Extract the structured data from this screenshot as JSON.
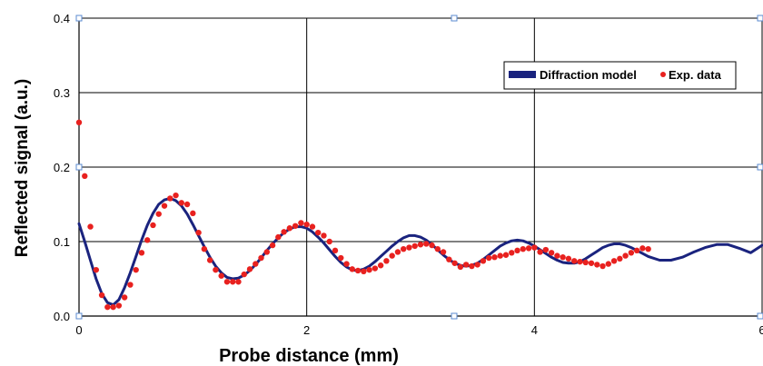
{
  "chart_data": {
    "type": "line",
    "xlabel": "Probe distance (mm)",
    "ylabel": "Reflected signal (a.u.)",
    "xlim": [
      0,
      6
    ],
    "ylim": [
      0,
      0.4
    ],
    "x_ticks": [
      "0",
      "2",
      "4",
      "6"
    ],
    "y_ticks": [
      "0.0",
      "0.1",
      "0.2",
      "0.3",
      "0.4"
    ],
    "grid": true,
    "legend_position": "top-right",
    "series": [
      {
        "name": "Diffraction model",
        "kind": "line",
        "color": "#1a237e",
        "x": [
          0,
          0.05,
          0.1,
          0.15,
          0.2,
          0.25,
          0.3,
          0.35,
          0.4,
          0.45,
          0.5,
          0.55,
          0.6,
          0.65,
          0.7,
          0.75,
          0.8,
          0.85,
          0.9,
          0.95,
          1.0,
          1.05,
          1.1,
          1.15,
          1.2,
          1.25,
          1.3,
          1.35,
          1.4,
          1.45,
          1.5,
          1.55,
          1.6,
          1.65,
          1.7,
          1.75,
          1.8,
          1.85,
          1.9,
          1.95,
          2.0,
          2.05,
          2.1,
          2.15,
          2.2,
          2.25,
          2.3,
          2.35,
          2.4,
          2.45,
          2.5,
          2.55,
          2.6,
          2.65,
          2.7,
          2.75,
          2.8,
          2.85,
          2.9,
          2.95,
          3.0,
          3.05,
          3.1,
          3.15,
          3.2,
          3.25,
          3.3,
          3.35,
          3.4,
          3.45,
          3.5,
          3.55,
          3.6,
          3.65,
          3.7,
          3.75,
          3.8,
          3.85,
          3.9,
          3.95,
          4.0,
          4.05,
          4.1,
          4.15,
          4.2,
          4.25,
          4.3,
          4.35,
          4.4,
          4.45,
          4.5,
          4.55,
          4.6,
          4.65,
          4.7,
          4.75,
          4.8,
          4.85,
          4.9,
          4.95,
          5.0,
          5.1,
          5.2,
          5.3,
          5.4,
          5.5,
          5.6,
          5.7,
          5.8,
          5.9,
          6.0
        ],
        "values": [
          0.124,
          0.1,
          0.075,
          0.05,
          0.03,
          0.018,
          0.015,
          0.022,
          0.038,
          0.058,
          0.08,
          0.102,
          0.122,
          0.138,
          0.15,
          0.156,
          0.158,
          0.155,
          0.148,
          0.137,
          0.123,
          0.108,
          0.093,
          0.079,
          0.067,
          0.058,
          0.052,
          0.05,
          0.051,
          0.055,
          0.061,
          0.069,
          0.078,
          0.088,
          0.097,
          0.105,
          0.112,
          0.117,
          0.12,
          0.12,
          0.118,
          0.113,
          0.106,
          0.098,
          0.089,
          0.08,
          0.072,
          0.066,
          0.062,
          0.061,
          0.063,
          0.067,
          0.073,
          0.08,
          0.087,
          0.094,
          0.1,
          0.105,
          0.108,
          0.108,
          0.106,
          0.102,
          0.096,
          0.089,
          0.082,
          0.076,
          0.071,
          0.068,
          0.067,
          0.068,
          0.071,
          0.076,
          0.082,
          0.088,
          0.094,
          0.098,
          0.101,
          0.102,
          0.101,
          0.098,
          0.094,
          0.089,
          0.084,
          0.079,
          0.075,
          0.072,
          0.071,
          0.071,
          0.073,
          0.077,
          0.082,
          0.087,
          0.092,
          0.095,
          0.097,
          0.097,
          0.095,
          0.092,
          0.088,
          0.084,
          0.08,
          0.075,
          0.075,
          0.079,
          0.086,
          0.092,
          0.096,
          0.096,
          0.091,
          0.085,
          0.095
        ]
      },
      {
        "name": "Exp. data",
        "kind": "scatter",
        "color": "#e8211f",
        "x": [
          0.0,
          0.05,
          0.1,
          0.15,
          0.2,
          0.25,
          0.3,
          0.35,
          0.4,
          0.45,
          0.5,
          0.55,
          0.6,
          0.65,
          0.7,
          0.75,
          0.8,
          0.85,
          0.9,
          0.95,
          1.0,
          1.05,
          1.1,
          1.15,
          1.2,
          1.25,
          1.3,
          1.35,
          1.4,
          1.45,
          1.5,
          1.55,
          1.6,
          1.65,
          1.7,
          1.75,
          1.8,
          1.85,
          1.9,
          1.95,
          2.0,
          2.05,
          2.1,
          2.15,
          2.2,
          2.25,
          2.3,
          2.35,
          2.4,
          2.45,
          2.5,
          2.55,
          2.6,
          2.65,
          2.7,
          2.75,
          2.8,
          2.85,
          2.9,
          2.95,
          3.0,
          3.05,
          3.1,
          3.15,
          3.2,
          3.25,
          3.3,
          3.35,
          3.4,
          3.45,
          3.5,
          3.55,
          3.6,
          3.65,
          3.7,
          3.75,
          3.8,
          3.85,
          3.9,
          3.95,
          4.0,
          4.05,
          4.1,
          4.15,
          4.2,
          4.25,
          4.3,
          4.35,
          4.4,
          4.45,
          4.5,
          4.55,
          4.6,
          4.65,
          4.7,
          4.75,
          4.8,
          4.85,
          4.9,
          4.95,
          5.0
        ],
        "values": [
          0.26,
          0.188,
          0.12,
          0.062,
          0.028,
          0.012,
          0.012,
          0.014,
          0.025,
          0.042,
          0.062,
          0.085,
          0.102,
          0.122,
          0.137,
          0.148,
          0.158,
          0.162,
          0.152,
          0.15,
          0.138,
          0.112,
          0.09,
          0.075,
          0.062,
          0.054,
          0.046,
          0.046,
          0.046,
          0.056,
          0.063,
          0.07,
          0.078,
          0.086,
          0.095,
          0.106,
          0.113,
          0.118,
          0.121,
          0.125,
          0.123,
          0.12,
          0.112,
          0.108,
          0.1,
          0.088,
          0.078,
          0.07,
          0.063,
          0.061,
          0.06,
          0.062,
          0.064,
          0.068,
          0.074,
          0.081,
          0.086,
          0.09,
          0.092,
          0.094,
          0.096,
          0.097,
          0.095,
          0.09,
          0.086,
          0.076,
          0.071,
          0.066,
          0.069,
          0.067,
          0.069,
          0.074,
          0.078,
          0.079,
          0.081,
          0.082,
          0.085,
          0.088,
          0.09,
          0.091,
          0.092,
          0.086,
          0.089,
          0.085,
          0.081,
          0.079,
          0.077,
          0.074,
          0.073,
          0.072,
          0.071,
          0.069,
          0.067,
          0.07,
          0.074,
          0.077,
          0.081,
          0.085,
          0.088,
          0.091,
          0.09
        ]
      }
    ]
  }
}
